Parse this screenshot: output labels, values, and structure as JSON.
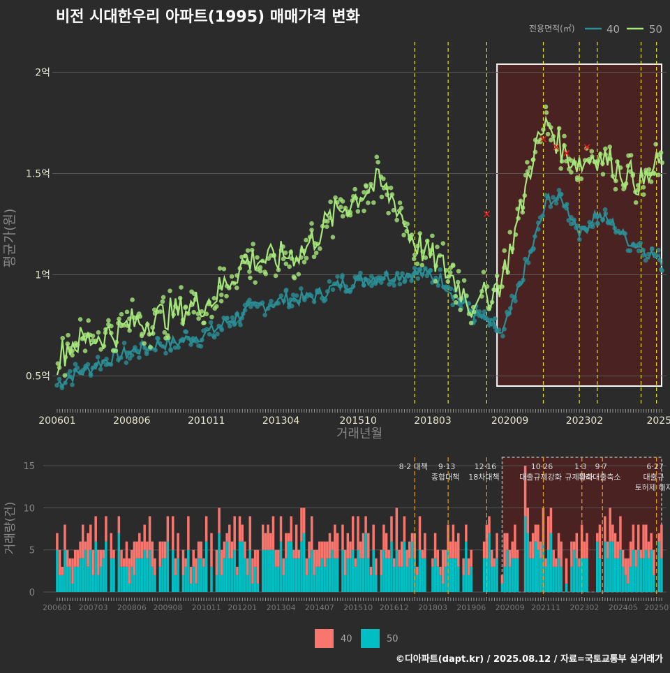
{
  "title": "비전 시대한우리 아파트(1995) 매매가격 변화",
  "footer": "©디아파트(dapt.kr) / 2025.08.12 / 자료=국토교통부 실거래가",
  "colors": {
    "s40": "#2a8f96",
    "s50": "#a6e87c",
    "v40": "#f8766d",
    "v50": "#00bfc4",
    "vline": "#e6e619",
    "vline2": "#e6a019",
    "box": "#ffffff",
    "shade": "#5a1f1f",
    "cross": "#e31a1c"
  },
  "chart_data": [
    {
      "type": "line",
      "title": "비전 시대한우리 아파트(1995) 매매가격 변화",
      "xlabel": "거래년월",
      "ylabel": "평균가(원)",
      "x_tick_labels": [
        "200601",
        "200806",
        "201011",
        "201304",
        "201510",
        "201803",
        "202009",
        "202302",
        "2025"
      ],
      "x_tick_positions": [
        "2006-01",
        "2008-06",
        "2010-11",
        "2013-04",
        "2015-10",
        "2018-03",
        "2020-09",
        "2023-02",
        "2025-07"
      ],
      "y_tick_labels": [
        "0.5억",
        "1억",
        "1.5억",
        "2억"
      ],
      "y_tick_values": [
        0.5,
        1.0,
        1.5,
        2.0
      ],
      "y_unit": "억원",
      "ylim": [
        0.35,
        2.15
      ],
      "legend_title": "전용면적(㎡)",
      "legend_position": "top-right",
      "grid": true,
      "series": [
        {
          "name": "40",
          "anchors": [
            [
              "2006-01",
              0.46
            ],
            [
              "2006-06",
              0.5
            ],
            [
              "2007-01",
              0.53
            ],
            [
              "2007-06",
              0.57
            ],
            [
              "2008-01",
              0.6
            ],
            [
              "2008-06",
              0.62
            ],
            [
              "2009-01",
              0.65
            ],
            [
              "2009-06",
              0.66
            ],
            [
              "2010-01",
              0.67
            ],
            [
              "2010-06",
              0.69
            ],
            [
              "2011-01",
              0.72
            ],
            [
              "2011-06",
              0.76
            ],
            [
              "2012-01",
              0.81
            ],
            [
              "2012-06",
              0.84
            ],
            [
              "2013-01",
              0.86
            ],
            [
              "2013-06",
              0.88
            ],
            [
              "2014-01",
              0.88
            ],
            [
              "2014-06",
              0.9
            ],
            [
              "2015-01",
              0.94
            ],
            [
              "2015-06",
              0.96
            ],
            [
              "2016-01",
              0.98
            ],
            [
              "2016-06",
              0.99
            ],
            [
              "2017-01",
              1.0
            ],
            [
              "2017-06",
              1.01
            ],
            [
              "2018-01",
              1.0
            ],
            [
              "2018-06",
              0.98
            ],
            [
              "2019-01",
              0.88
            ],
            [
              "2019-06",
              0.82
            ],
            [
              "2020-01",
              0.76
            ],
            [
              "2020-06",
              0.7
            ],
            [
              "2021-01",
              0.95
            ],
            [
              "2021-06",
              1.15
            ],
            [
              "2021-12",
              1.38
            ],
            [
              "2022-06",
              1.36
            ],
            [
              "2023-01",
              1.2
            ],
            [
              "2023-06",
              1.3
            ],
            [
              "2024-01",
              1.25
            ],
            [
              "2024-06",
              1.18
            ],
            [
              "2025-01",
              1.13
            ],
            [
              "2025-07",
              1.07
            ]
          ]
        },
        {
          "name": "50",
          "anchors": [
            [
              "2006-01",
              0.58
            ],
            [
              "2006-06",
              0.66
            ],
            [
              "2007-01",
              0.68
            ],
            [
              "2007-06",
              0.7
            ],
            [
              "2008-01",
              0.72
            ],
            [
              "2008-06",
              0.76
            ],
            [
              "2009-01",
              0.78
            ],
            [
              "2009-06",
              0.8
            ],
            [
              "2010-01",
              0.82
            ],
            [
              "2010-06",
              0.85
            ],
            [
              "2011-01",
              0.88
            ],
            [
              "2011-06",
              0.95
            ],
            [
              "2012-01",
              1.05
            ],
            [
              "2012-06",
              1.08
            ],
            [
              "2013-01",
              1.07
            ],
            [
              "2013-06",
              1.1
            ],
            [
              "2014-01",
              1.12
            ],
            [
              "2014-06",
              1.2
            ],
            [
              "2015-01",
              1.3
            ],
            [
              "2015-06",
              1.35
            ],
            [
              "2016-01",
              1.42
            ],
            [
              "2016-06",
              1.45
            ],
            [
              "2017-01",
              1.35
            ],
            [
              "2017-06",
              1.2
            ],
            [
              "2018-01",
              1.1
            ],
            [
              "2018-06",
              1.05
            ],
            [
              "2019-01",
              0.95
            ],
            [
              "2019-06",
              0.85
            ],
            [
              "2020-01",
              0.9
            ],
            [
              "2020-06",
              0.98
            ],
            [
              "2021-01",
              1.3
            ],
            [
              "2021-06",
              1.6
            ],
            [
              "2021-12",
              1.75
            ],
            [
              "2022-06",
              1.6
            ],
            [
              "2023-01",
              1.55
            ],
            [
              "2023-06",
              1.6
            ],
            [
              "2024-01",
              1.55
            ],
            [
              "2024-06",
              1.5
            ],
            [
              "2025-01",
              1.45
            ],
            [
              "2025-07",
              1.55
            ]
          ]
        }
      ],
      "cross_markers": [
        [
          "2019-12",
          1.3
        ],
        [
          "2021-10",
          1.67
        ],
        [
          "2022-03",
          1.63
        ],
        [
          "2022-07",
          1.6
        ],
        [
          "2023-03",
          1.63
        ]
      ],
      "highlight_box": {
        "x": [
          "2020-04",
          "2025-08"
        ],
        "y": [
          0.45,
          2.04
        ]
      },
      "policy_lines": [
        "2017-08",
        "2018-09",
        "2019-12",
        "2021-10",
        "2022-12",
        "2023-07",
        "2024-12",
        "2025-06"
      ]
    },
    {
      "type": "bar",
      "ylabel": "거래량(건)",
      "y_tick_labels": [
        "0",
        "5",
        "10",
        "15"
      ],
      "y_tick_values": [
        0,
        5,
        10,
        15
      ],
      "ylim": [
        0,
        16
      ],
      "x_tick_labels": [
        "200601",
        "200703",
        "200806",
        "200908",
        "201011",
        "201201",
        "201304",
        "201407",
        "201510",
        "201612",
        "201803",
        "201906",
        "202009",
        "202111",
        "202302",
        "202405",
        "202507"
      ],
      "x_tick_positions": [
        "2006-01",
        "2007-03",
        "2008-06",
        "2009-08",
        "2010-11",
        "2012-01",
        "2013-04",
        "2014-07",
        "2015-10",
        "2016-12",
        "2018-03",
        "2019-06",
        "2020-09",
        "2021-11",
        "2023-02",
        "2024-05",
        "2025-07"
      ],
      "legend_position": "bottom",
      "stacked": true,
      "series": [
        {
          "name": "40",
          "pattern": [
            3,
            2,
            1,
            3,
            2,
            1,
            2,
            3,
            1,
            2,
            3,
            1,
            2,
            4,
            2,
            1,
            3,
            2,
            2,
            1,
            3,
            2,
            1,
            2
          ]
        },
        {
          "name": "50",
          "pattern": [
            3,
            4,
            2,
            5,
            3,
            2,
            4,
            1,
            3,
            4,
            2,
            3,
            5,
            2,
            1,
            3,
            4,
            2,
            3,
            2,
            4,
            1,
            3,
            2
          ]
        }
      ],
      "highlight_box": {
        "x": [
          "2020-06",
          "2025-08"
        ],
        "y": [
          0,
          16
        ]
      },
      "annotations": [
        {
          "date": "2017-08",
          "lines": [
            "8·2 대책"
          ]
        },
        {
          "date": "2018-09",
          "lines": [
            "9·13",
            "종합대책"
          ]
        },
        {
          "date": "2019-12",
          "lines": [
            "12·16",
            "18차대책"
          ]
        },
        {
          "date": "2021-10",
          "lines": [
            "10·26",
            "대출규제강화"
          ]
        },
        {
          "date": "2023-01",
          "lines": [
            "1·3",
            "규제완화"
          ]
        },
        {
          "date": "2023-09",
          "lines": [
            "9·7",
            "특례대출축소"
          ]
        },
        {
          "date": "2025-06",
          "lines": [
            "6·27",
            "대출규",
            "토허제 해지"
          ]
        }
      ]
    }
  ]
}
